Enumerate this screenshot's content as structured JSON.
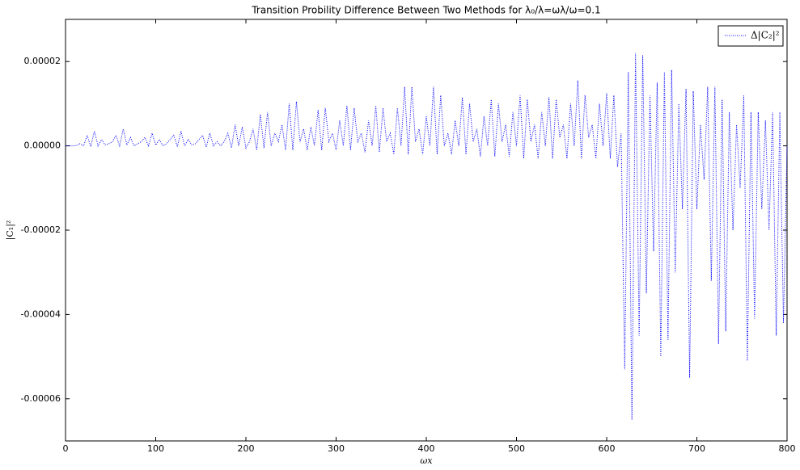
{
  "chart_data": {
    "type": "line",
    "title": "Transition Probility Difference Between Two Methods for λ₀/λ=ωλ/ω=0.1",
    "x_label": "ωx",
    "y_label": "|C₁|²",
    "xlim": [
      0,
      800
    ],
    "ylim": [
      -7e-05,
      3e-05
    ],
    "xticks": [
      0,
      100,
      200,
      300,
      400,
      500,
      600,
      700,
      800
    ],
    "yticks": [
      {
        "value": -6e-05,
        "label": "-0.00006"
      },
      {
        "value": -4e-05,
        "label": "-0.00004"
      },
      {
        "value": -2e-05,
        "label": "-0.00002"
      },
      {
        "value": 0,
        "label": "0.00000"
      },
      {
        "value": 2e-05,
        "label": "0.00002"
      }
    ],
    "legend": "upper right",
    "grid": false,
    "x": [
      0,
      4,
      8,
      12,
      16,
      20,
      24,
      28,
      32,
      36,
      40,
      44,
      48,
      52,
      56,
      60,
      64,
      68,
      72,
      76,
      80,
      84,
      88,
      92,
      96,
      100,
      104,
      108,
      112,
      116,
      120,
      124,
      128,
      132,
      136,
      140,
      144,
      148,
      152,
      156,
      160,
      164,
      168,
      172,
      176,
      180,
      184,
      188,
      192,
      196,
      200,
      204,
      208,
      212,
      216,
      220,
      224,
      228,
      232,
      236,
      240,
      244,
      248,
      252,
      256,
      260,
      264,
      268,
      272,
      276,
      280,
      284,
      288,
      292,
      296,
      300,
      304,
      308,
      312,
      316,
      320,
      324,
      328,
      332,
      336,
      340,
      344,
      348,
      352,
      356,
      360,
      364,
      368,
      372,
      376,
      380,
      384,
      388,
      392,
      396,
      400,
      404,
      408,
      412,
      416,
      420,
      424,
      428,
      432,
      436,
      440,
      444,
      448,
      452,
      456,
      460,
      464,
      468,
      472,
      476,
      480,
      484,
      488,
      492,
      496,
      500,
      504,
      508,
      512,
      516,
      520,
      524,
      528,
      532,
      536,
      540,
      544,
      548,
      552,
      556,
      560,
      564,
      568,
      572,
      576,
      580,
      584,
      588,
      592,
      596,
      600,
      604,
      608,
      612,
      616,
      620,
      624,
      628,
      632,
      636,
      640,
      644,
      648,
      652,
      656,
      660,
      664,
      668,
      672,
      676,
      680,
      684,
      688,
      692,
      696,
      700,
      704,
      708,
      712,
      716,
      720,
      724,
      728,
      732,
      736,
      740,
      744,
      748,
      752,
      756,
      760,
      764,
      768,
      772,
      776,
      780,
      784,
      788,
      792,
      796,
      800
    ],
    "series": [
      {
        "name": "Δ|C₂|²",
        "color": "#0000ff",
        "values": [
          0,
          0,
          0,
          1e-07,
          5e-07,
          0,
          2.5e-06,
          -2e-07,
          3.5e-06,
          0,
          1.5e-06,
          2e-07,
          5e-07,
          1e-06,
          2.5e-06,
          0,
          4e-06,
          2e-07,
          2e-06,
          0,
          5e-07,
          1e-06,
          2e-06,
          0,
          3e-06,
          2e-07,
          1.5e-06,
          0,
          5e-07,
          1.5e-06,
          2.5e-06,
          -2e-07,
          3.5e-06,
          0,
          1.5e-06,
          2e-07,
          5e-07,
          1.5e-06,
          2.5e-06,
          -3e-07,
          3e-06,
          0,
          1e-06,
          0,
          1e-06,
          3e-06,
          -5e-07,
          5e-06,
          0,
          4.5e-06,
          -5e-07,
          1e-06,
          4e-06,
          -1e-06,
          7.5e-06,
          -5e-07,
          8e-06,
          0,
          3e-06,
          1e-06,
          5e-06,
          -1e-06,
          1e-05,
          -1e-06,
          1.05e-05,
          1e-06,
          4e-06,
          -1e-06,
          4.5e-06,
          0,
          8.5e-06,
          -1e-06,
          9e-06,
          1e-06,
          3e-06,
          -1e-06,
          6e-06,
          0,
          9.5e-06,
          -1e-06,
          9e-06,
          1e-06,
          3e-06,
          -1.5e-06,
          6e-06,
          0,
          9.5e-06,
          -1.5e-06,
          9e-06,
          1e-06,
          3e-06,
          -2e-06,
          9e-06,
          0,
          1.4e-05,
          -2e-06,
          1.4e-05,
          1e-06,
          4e-06,
          -2e-06,
          7e-06,
          0,
          1.4e-05,
          -2e-06,
          1.2e-05,
          0,
          3e-06,
          -2e-06,
          6e-06,
          0,
          1.15e-05,
          -2e-06,
          1e-05,
          1e-06,
          4e-06,
          -2.5e-06,
          7e-06,
          0,
          1.1e-05,
          -2.5e-06,
          1e-05,
          1e-06,
          5e-06,
          -2.5e-06,
          8e-06,
          0,
          1.2e-05,
          -3e-06,
          1.1e-05,
          1e-06,
          5e-06,
          -3e-06,
          8e-06,
          0,
          1.15e-05,
          -3e-06,
          1.1e-05,
          2e-06,
          5e-06,
          -3e-06,
          1e-05,
          0,
          1.55e-05,
          -3e-06,
          1.2e-05,
          2e-06,
          5e-06,
          -3e-06,
          1e-05,
          0,
          1.25e-05,
          -3e-06,
          1.2e-05,
          -5e-06,
          3e-06,
          -5.3e-05,
          1.75e-05,
          -6.5e-05,
          2.2e-05,
          -4.5e-05,
          2.15e-05,
          -3.5e-05,
          1.2e-05,
          -2.5e-05,
          1.5e-05,
          -5e-05,
          1.75e-05,
          -4.6e-05,
          1.8e-05,
          -3e-05,
          1e-05,
          -1.5e-05,
          1.35e-05,
          -5.5e-05,
          1.3e-05,
          -1.5e-05,
          5e-06,
          -8e-06,
          1.4e-05,
          -3.2e-05,
          1.4e-05,
          -4.7e-05,
          1.1e-05,
          -4.4e-05,
          8e-06,
          -2e-05,
          5e-06,
          -1e-05,
          1.2e-05,
          -5.1e-05,
          8e-06,
          -4.1e-05,
          8e-06,
          -1.5e-05,
          6e-06,
          -2e-05,
          8e-06,
          -4.5e-05,
          8e-06,
          -4.2e-05,
          0
        ]
      }
    ]
  }
}
